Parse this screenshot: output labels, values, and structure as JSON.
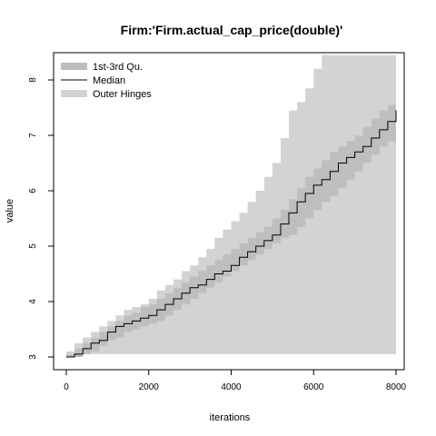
{
  "chart_data": {
    "type": "area",
    "title": "Firm:'Firm.actual_cap_price(double)'",
    "xlabel": "iterations",
    "ylabel": "value",
    "xlim": [
      0,
      8000
    ],
    "ylim": [
      2.8,
      8.45
    ],
    "x_ticks": [
      0,
      2000,
      4000,
      6000,
      8000
    ],
    "y_ticks": [
      3,
      4,
      5,
      6,
      7,
      8
    ],
    "grid": false,
    "legend_position": "top-left",
    "legend": [
      {
        "label": "1st-3rd Qu.",
        "kind": "band",
        "color": "#bebebe"
      },
      {
        "label": "Median",
        "kind": "line",
        "color": "#000000"
      },
      {
        "label": "Outer Hinges",
        "kind": "band",
        "color": "#d3d3d3"
      }
    ],
    "x": [
      0,
      200,
      400,
      600,
      800,
      1000,
      1200,
      1400,
      1600,
      1800,
      2000,
      2200,
      2400,
      2600,
      2800,
      3000,
      3200,
      3400,
      3600,
      3800,
      4000,
      4200,
      4400,
      4600,
      4800,
      5000,
      5200,
      5400,
      5600,
      5800,
      6000,
      6200,
      6400,
      6600,
      6800,
      7000,
      7200,
      7400,
      7600,
      7800,
      8000
    ],
    "series": [
      {
        "name": "Outer Hinges",
        "lower": [
          3.05,
          3.05,
          3.05,
          3.05,
          3.05,
          3.05,
          3.05,
          3.05,
          3.05,
          3.05,
          3.05,
          3.05,
          3.05,
          3.05,
          3.05,
          3.05,
          3.05,
          3.05,
          3.05,
          3.05,
          3.05,
          3.05,
          3.05,
          3.05,
          3.05,
          3.05,
          3.05,
          3.05,
          3.05,
          3.05,
          3.05,
          3.05,
          3.05,
          3.05,
          3.05,
          3.05,
          3.05,
          3.05,
          3.05,
          3.05,
          3.05
        ],
        "upper": [
          3.1,
          3.25,
          3.35,
          3.45,
          3.55,
          3.65,
          3.75,
          3.85,
          3.9,
          3.95,
          4.05,
          4.2,
          4.3,
          4.4,
          4.55,
          4.65,
          4.8,
          4.95,
          5.15,
          5.3,
          5.45,
          5.6,
          5.8,
          6.0,
          6.25,
          6.5,
          6.95,
          7.45,
          7.6,
          7.85,
          8.2,
          8.45,
          8.45,
          8.45,
          8.45,
          8.45,
          8.45,
          8.45,
          8.45,
          8.45,
          8.45
        ]
      },
      {
        "name": "1st-3rd Qu.",
        "lower": [
          3.0,
          3.0,
          3.05,
          3.1,
          3.2,
          3.3,
          3.35,
          3.45,
          3.5,
          3.55,
          3.6,
          3.65,
          3.75,
          3.85,
          3.95,
          4.05,
          4.15,
          4.25,
          4.35,
          4.45,
          4.55,
          4.65,
          4.75,
          4.85,
          4.95,
          5.05,
          5.15,
          5.2,
          5.35,
          5.5,
          5.65,
          5.8,
          5.9,
          6.05,
          6.2,
          6.35,
          6.5,
          6.65,
          6.8,
          6.9,
          7.0
        ],
        "upper": [
          3.05,
          3.15,
          3.25,
          3.35,
          3.45,
          3.55,
          3.65,
          3.75,
          3.8,
          3.9,
          3.95,
          4.05,
          4.15,
          4.25,
          4.35,
          4.45,
          4.55,
          4.65,
          4.75,
          4.85,
          4.95,
          5.05,
          5.15,
          5.25,
          5.35,
          5.5,
          5.65,
          5.85,
          6.05,
          6.25,
          6.4,
          6.55,
          6.7,
          6.8,
          6.9,
          7.0,
          7.15,
          7.3,
          7.45,
          7.55,
          7.6
        ]
      },
      {
        "name": "Median",
        "values": [
          3.0,
          3.05,
          3.15,
          3.25,
          3.3,
          3.45,
          3.55,
          3.6,
          3.65,
          3.7,
          3.75,
          3.85,
          3.95,
          4.05,
          4.15,
          4.25,
          4.3,
          4.4,
          4.5,
          4.55,
          4.65,
          4.8,
          4.9,
          5.0,
          5.1,
          5.2,
          5.4,
          5.6,
          5.8,
          5.95,
          6.1,
          6.2,
          6.35,
          6.5,
          6.6,
          6.7,
          6.8,
          6.95,
          7.1,
          7.25,
          7.45
        ]
      }
    ]
  }
}
